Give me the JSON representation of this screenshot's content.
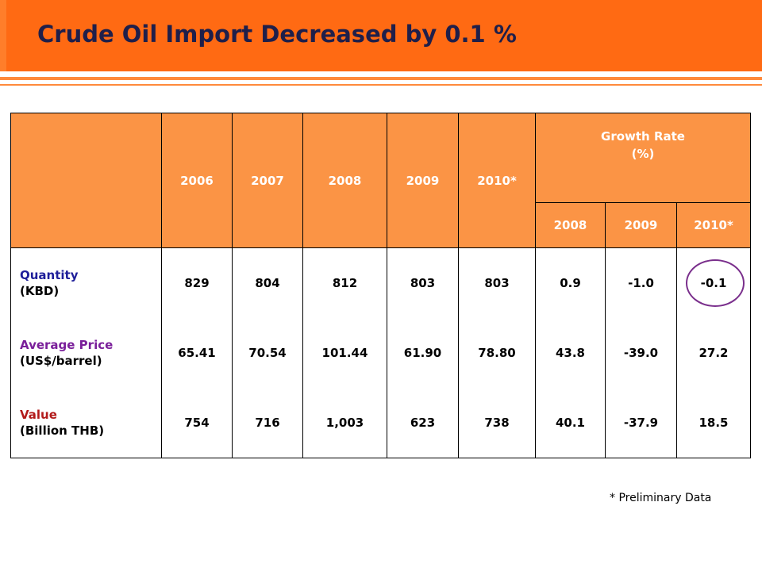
{
  "title": "Crude Oil Import Decreased by 0.1 %",
  "table": {
    "years": [
      "2006",
      "2007",
      "2008",
      "2009",
      "2010*"
    ],
    "growth_header": "Growth Rate\n(%)",
    "growth_line1": "Growth Rate",
    "growth_line2": "(%)",
    "growth_years": [
      "2008",
      "2009",
      "2010*"
    ],
    "rows": [
      {
        "label1": "Quantity",
        "label2": "(KBD)",
        "values": [
          "829",
          "804",
          "812",
          "803",
          "803"
        ],
        "growth": [
          "0.9",
          "-1.0",
          "-0.1"
        ]
      },
      {
        "label1": "Average Price",
        "label2": "(US$/barrel)",
        "values": [
          "65.41",
          "70.54",
          "101.44",
          "61.90",
          "78.80"
        ],
        "growth": [
          "43.8",
          "-39.0",
          "27.2"
        ]
      },
      {
        "label1": "Value",
        "label2": "(Billion THB)",
        "values": [
          "754",
          "716",
          "1,003",
          "623",
          "738"
        ],
        "growth": [
          "40.1",
          "-37.9",
          "18.5"
        ]
      }
    ]
  },
  "footnote": "*  Preliminary Data",
  "colors": {
    "title_bar": "#ff6a13",
    "header_fill": "#fb9445",
    "highlight_circle": "#7a2f8c"
  }
}
